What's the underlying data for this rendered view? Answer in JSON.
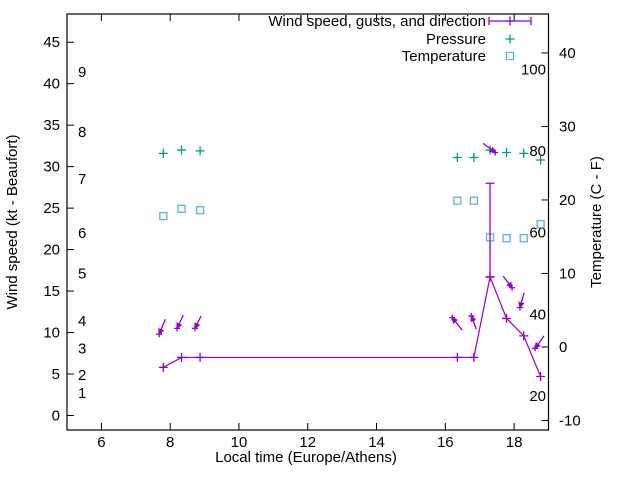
{
  "chart_data": {
    "type": "line",
    "title": "",
    "xlabel": "Local time (Europe/Athens)",
    "ylabel_left": "Wind speed (kt - Beaufort)",
    "ylabel_right": "Temperature (C - F)",
    "background": "#ffffff",
    "border_color": "#000000",
    "x_range": [
      5,
      19
    ],
    "x_ticks": [
      6,
      8,
      10,
      12,
      14,
      16,
      18
    ],
    "kt_range": [
      -1.75,
      48.4
    ],
    "kt_ticks": [
      0,
      5,
      10,
      15,
      20,
      25,
      30,
      35,
      40,
      45
    ],
    "c_range": [
      -11.3,
      45.3
    ],
    "c_ticks": [
      -10,
      0,
      10,
      20,
      30,
      40
    ],
    "fahrenheit_inner_labels": [
      20,
      40,
      60,
      80,
      100
    ],
    "beaufort_inner_labels": [
      {
        "label": "1",
        "kt": 2.7
      },
      {
        "label": "2",
        "kt": 4.9
      },
      {
        "label": "3",
        "kt": 8.1
      },
      {
        "label": "4",
        "kt": 11.4
      },
      {
        "label": "5",
        "kt": 17.1
      },
      {
        "label": "6",
        "kt": 22.0
      },
      {
        "label": "7",
        "kt": 28.5
      },
      {
        "label": "8",
        "kt": 34.2
      },
      {
        "label": "9",
        "kt": 41.4
      }
    ],
    "legend": {
      "position": "top-right-inside",
      "entries": [
        {
          "label": "Wind speed, gusts, and direction",
          "style": "errorbar-line",
          "color": "#9400D3"
        },
        {
          "label": "Pressure",
          "style": "plus",
          "color": "#009E73"
        },
        {
          "label": "Temperature",
          "style": "square",
          "color": "#56B4E9"
        }
      ]
    },
    "series": {
      "wind": {
        "name": "Wind speed, gusts, and direction",
        "color": "#9400D3",
        "style": "linespoints-plus",
        "x_hours": [
          7.8,
          8.33,
          8.87,
          16.35,
          16.83,
          17.3,
          17.78,
          18.28,
          18.77
        ],
        "speed_kt": [
          5.8,
          7,
          7,
          7,
          7,
          16.7,
          11.7,
          9.6,
          4.7
        ],
        "gust_bars": [
          {
            "t": 17.3,
            "from_kt": 16.7,
            "to_kt": 28
          }
        ],
        "direction_arrows": [
          {
            "t1": 7.86,
            "kt1": 11.6,
            "t2": 7.68,
            "kt2": 9.8
          },
          {
            "t1": 8.38,
            "kt1": 12.1,
            "t2": 8.2,
            "kt2": 10.5
          },
          {
            "t1": 8.9,
            "kt1": 12.0,
            "t2": 8.72,
            "kt2": 10.5
          },
          {
            "t1": 16.49,
            "kt1": 10.3,
            "t2": 16.2,
            "kt2": 11.8
          },
          {
            "t1": 16.9,
            "kt1": 10.4,
            "t2": 16.76,
            "kt2": 12.0
          },
          {
            "t1": 17.1,
            "kt1": 32.8,
            "t2": 17.45,
            "kt2": 31.7
          },
          {
            "t1": 17.68,
            "kt1": 16.8,
            "t2": 17.94,
            "kt2": 15.4
          },
          {
            "t1": 18.29,
            "kt1": 14.8,
            "t2": 18.17,
            "kt2": 13.0
          },
          {
            "t1": 18.87,
            "kt1": 9.6,
            "t2": 18.61,
            "kt2": 8.1
          }
        ]
      },
      "pressure": {
        "name": "Pressure",
        "color": "#009E73",
        "style": "points-plus",
        "x_hours": [
          7.8,
          8.33,
          8.87,
          16.35,
          16.83,
          17.3,
          17.78,
          18.28,
          18.77
        ],
        "plotted_kt_axis_y": [
          31.6,
          32.0,
          31.9,
          31.1,
          31.1,
          32.0,
          31.7,
          31.6,
          30.8
        ]
      },
      "temperature": {
        "name": "Temperature",
        "color": "#56B4E9",
        "style": "points-square",
        "x_hours": [
          7.8,
          8.33,
          8.87,
          16.35,
          16.83,
          17.3,
          17.78,
          18.28,
          18.77
        ],
        "celsius": [
          17.8,
          18.8,
          18.6,
          19.9,
          19.9,
          14.9,
          14.8,
          14.8,
          16.7
        ]
      }
    }
  }
}
